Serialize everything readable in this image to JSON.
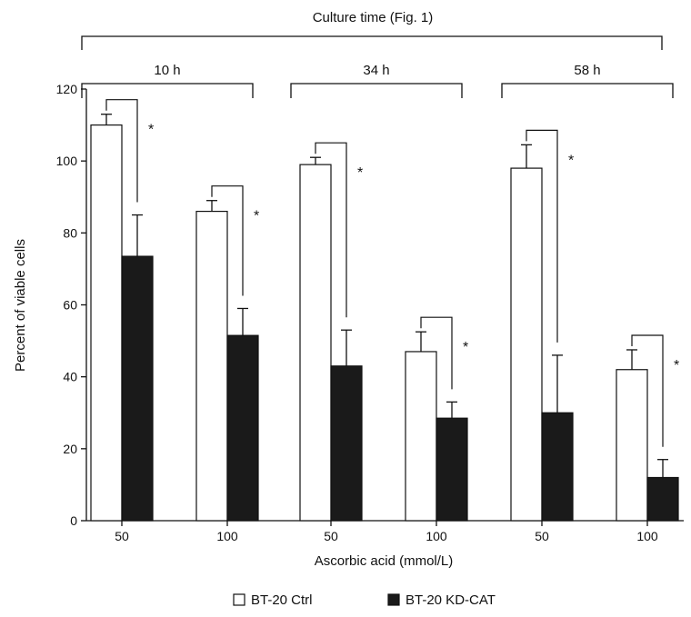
{
  "chart_data": {
    "type": "bar",
    "title": "Culture time (Fig. 1)",
    "xlabel": "Ascorbic acid (mmol/L)",
    "ylabel": "Percent of viable cells",
    "ylim": [
      0,
      120
    ],
    "yticks": [
      0,
      20,
      40,
      60,
      80,
      100,
      120
    ],
    "grid": false,
    "legend_position": "bottom-center",
    "groups": [
      {
        "label": "10 h",
        "categories": [
          "50",
          "100"
        ]
      },
      {
        "label": "34 h",
        "categories": [
          "50",
          "100"
        ]
      },
      {
        "label": "58 h",
        "categories": [
          "50",
          "100"
        ]
      }
    ],
    "categories": [
      "50",
      "100",
      "50",
      "100",
      "50",
      "100"
    ],
    "series": [
      {
        "name": "BT-20 Ctrl",
        "fill": "#ffffff",
        "values": [
          110,
          86,
          99,
          47,
          98,
          42
        ],
        "errors": [
          3,
          3,
          2,
          5.5,
          6.5,
          5.5
        ]
      },
      {
        "name": "BT-20 KD-CAT",
        "fill": "#1a1a1a",
        "values": [
          73.5,
          51.5,
          43,
          28.5,
          30,
          12
        ],
        "errors": [
          11.5,
          7.5,
          10,
          4.5,
          16,
          5
        ]
      }
    ],
    "significance": [
      "*",
      "*",
      "*",
      "*",
      "*",
      "*"
    ]
  }
}
